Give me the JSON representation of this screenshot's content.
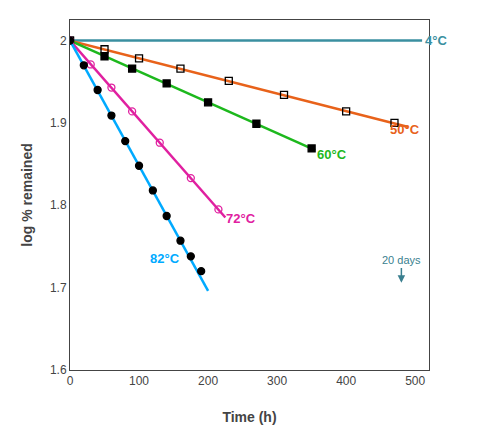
{
  "chart_data": {
    "type": "line",
    "title": "",
    "xlabel": "Time (h)",
    "ylabel": "log % remained",
    "xlim": [
      0,
      520
    ],
    "ylim": [
      1.6,
      2.025
    ],
    "xticks": [
      0,
      100,
      200,
      300,
      400,
      500
    ],
    "yticks": [
      1.6,
      1.7,
      1.8,
      1.9,
      2.0
    ],
    "grid": false,
    "series": [
      {
        "type": "line",
        "color": "#3a8fa0",
        "x": [
          0,
          510
        ],
        "values": [
          2.0,
          2.0
        ]
      },
      {
        "type": "line",
        "color": "#e8621a",
        "x": [
          0,
          490
        ],
        "values": [
          2.0,
          1.89514
        ]
      },
      {
        "type": "scatter",
        "color": "black",
        "marker": "square-open",
        "x": [
          0,
          50,
          100,
          160,
          230,
          310,
          400,
          470
        ],
        "values": [
          2.0,
          1.9895,
          1.9785,
          1.966,
          1.951,
          1.934,
          1.914,
          1.9
        ]
      },
      {
        "type": "line",
        "color": "#1db81d",
        "x": [
          0,
          355
        ],
        "values": [
          2.0,
          1.866875
        ]
      },
      {
        "type": "scatter",
        "color": "black",
        "marker": "square",
        "x": [
          0,
          50,
          90,
          140,
          200,
          270,
          350
        ],
        "values": [
          2.0,
          1.981,
          1.966,
          1.948,
          1.925,
          1.899,
          1.869
        ]
      },
      {
        "type": "line",
        "color": "#e020a0",
        "x": [
          0,
          225
        ],
        "values": [
          2.0,
          1.785125
        ]
      },
      {
        "type": "scatter",
        "color": "#e020a0",
        "marker": "circle-open",
        "x": [
          0,
          30,
          60,
          90,
          130,
          175,
          215
        ],
        "values": [
          2.0,
          1.971,
          1.943,
          1.914,
          1.876,
          1.833,
          1.795
        ]
      },
      {
        "type": "line",
        "color": "#00aaff",
        "x": [
          0,
          200
        ],
        "values": [
          2.0,
          1.696
        ]
      },
      {
        "type": "scatter",
        "color": "black",
        "marker": "circle",
        "x": [
          0,
          20,
          40,
          60,
          80,
          100,
          120,
          140,
          160,
          175,
          190
        ],
        "values": [
          2.0,
          1.97,
          1.94,
          1.909,
          1.878,
          1.848,
          1.818,
          1.787,
          1.757,
          1.738,
          1.72
        ]
      }
    ],
    "labels": [
      {
        "text": "4°C",
        "x": 512,
        "y": 2.0,
        "color": "#3a8fa0"
      },
      {
        "text": "50°C",
        "x": 460,
        "y": 1.892,
        "color": "#e8621a"
      },
      {
        "text": "60°C",
        "x": 355,
        "y": 1.862,
        "color": "#1db81d"
      },
      {
        "text": "72°C",
        "x": 223,
        "y": 1.784,
        "color": "#e020a0"
      },
      {
        "text": "82°C",
        "x": 113,
        "y": 1.736,
        "color": "#00aaff"
      }
    ],
    "annotations": [
      {
        "text": "20 days",
        "x": 480,
        "y": 1.733,
        "arrow_x": 480,
        "arrow_y": 1.706,
        "color": "#3a7f8f"
      }
    ]
  }
}
